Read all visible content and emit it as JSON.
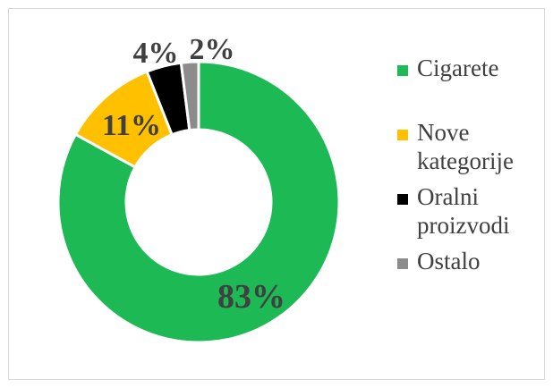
{
  "chart_data": {
    "type": "pie",
    "donut": true,
    "categories": [
      "Cigarete",
      "Nove kategorije",
      "Oralni proizvodi",
      "Ostalo"
    ],
    "values": [
      83,
      11,
      4,
      2
    ],
    "labels": [
      "83%",
      "11%",
      "4%",
      "2%"
    ],
    "colors": [
      "#1db954",
      "#ffc000",
      "#000000",
      "#8c8c8c"
    ],
    "legend": "right",
    "title": ""
  },
  "legend": {
    "items": [
      {
        "label": "Cigarete",
        "color": "#1db954"
      },
      {
        "label": "Nove kategorije",
        "color": "#ffc000"
      },
      {
        "label": "Oralni proizvodi",
        "color": "#000000"
      },
      {
        "label": "Ostalo",
        "color": "#8c8c8c"
      }
    ]
  }
}
